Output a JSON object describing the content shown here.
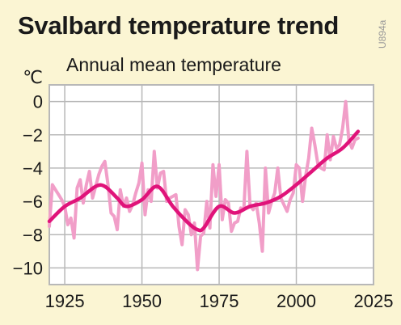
{
  "header": {
    "title": "Svalbard temperature trend",
    "code": "U894a"
  },
  "chart_data": {
    "type": "line",
    "title": "Svalbard temperature trend",
    "subtitle": "Annual mean temperature",
    "unit_label": "℃",
    "xlabel": "",
    "ylabel": "℃",
    "xlim": [
      1920,
      2025
    ],
    "ylim": [
      -11,
      1
    ],
    "x_ticks": [
      1925,
      1950,
      1975,
      2000,
      2025
    ],
    "y_ticks": [
      0,
      -2,
      -4,
      -6,
      -8,
      -10
    ],
    "grid": true,
    "legend": "none",
    "colors": {
      "background": "#fbf5d3",
      "plot_background": "#ffffff",
      "grid": "#b8b8b8",
      "annual": "#f19ec8",
      "trend": "#e0137a"
    },
    "series": [
      {
        "key": "annual",
        "x": [
          1920,
          1921,
          1922,
          1923,
          1924,
          1925,
          1926,
          1927,
          1928,
          1929,
          1930,
          1931,
          1932,
          1933,
          1934,
          1935,
          1936,
          1937,
          1938,
          1939,
          1940,
          1941,
          1942,
          1943,
          1944,
          1945,
          1946,
          1947,
          1948,
          1949,
          1950,
          1951,
          1952,
          1953,
          1954,
          1955,
          1956,
          1957,
          1958,
          1959,
          1960,
          1961,
          1962,
          1963,
          1964,
          1965,
          1966,
          1967,
          1968,
          1969,
          1970,
          1971,
          1972,
          1973,
          1974,
          1975,
          1976,
          1977,
          1978,
          1979,
          1980,
          1981,
          1982,
          1983,
          1984,
          1985,
          1986,
          1987,
          1988,
          1989,
          1990,
          1991,
          1992,
          1993,
          1994,
          1995,
          1996,
          1997,
          1998,
          1999,
          2000,
          2001,
          2002,
          2003,
          2004,
          2005,
          2006,
          2007,
          2008,
          2009,
          2010,
          2011,
          2012,
          2013,
          2014,
          2015,
          2016,
          2017,
          2018,
          2019,
          2020
        ],
        "values": [
          -7.5,
          -5.0,
          -5.3,
          -5.6,
          -5.9,
          -6.3,
          -7.4,
          -7.0,
          -8.2,
          -5.2,
          -4.7,
          -6.1,
          -5.0,
          -4.2,
          -5.8,
          -5.1,
          -4.4,
          -3.9,
          -3.6,
          -5.0,
          -6.7,
          -6.9,
          -7.7,
          -5.3,
          -6.3,
          -5.8,
          -6.6,
          -6.2,
          -5.5,
          -4.9,
          -3.7,
          -6.8,
          -5.3,
          -6.0,
          -3.0,
          -5.2,
          -4.3,
          -4.2,
          -6.0,
          -5.8,
          -5.7,
          -5.6,
          -7.5,
          -8.6,
          -6.5,
          -6.8,
          -8.0,
          -7.3,
          -10.1,
          -8.1,
          -7.9,
          -6.0,
          -7.6,
          -3.8,
          -5.7,
          -3.8,
          -7.1,
          -5.9,
          -6.1,
          -7.8,
          -7.3,
          -7.2,
          -6.4,
          -6.5,
          -3.0,
          -6.2,
          -6.5,
          -6.1,
          -7.3,
          -9.0,
          -4.0,
          -6.7,
          -6.0,
          -5.5,
          -4.0,
          -5.8,
          -6.2,
          -6.6,
          -5.9,
          -5.5,
          -3.8,
          -4.0,
          -6.0,
          -4.5,
          -3.4,
          -1.6,
          -2.6,
          -3.8,
          -4.0,
          -4.1,
          -2.0,
          -3.5,
          -2.1,
          -2.8,
          -2.6,
          -1.6,
          0.0,
          -2.3,
          -2.8,
          -2.3,
          -2.2
        ]
      },
      {
        "key": "trend",
        "x": [
          1920,
          1925,
          1930,
          1935,
          1938,
          1942,
          1945,
          1950,
          1955,
          1960,
          1965,
          1968,
          1970,
          1975,
          1980,
          1985,
          1990,
          1995,
          2000,
          2005,
          2010,
          2015,
          2020
        ],
        "values": [
          -7.2,
          -6.3,
          -5.8,
          -5.1,
          -5.1,
          -5.8,
          -6.3,
          -5.9,
          -5.1,
          -6.3,
          -7.3,
          -7.7,
          -7.6,
          -6.3,
          -6.7,
          -6.3,
          -6.1,
          -5.7,
          -5.0,
          -4.2,
          -3.4,
          -2.8,
          -1.8
        ]
      }
    ]
  }
}
